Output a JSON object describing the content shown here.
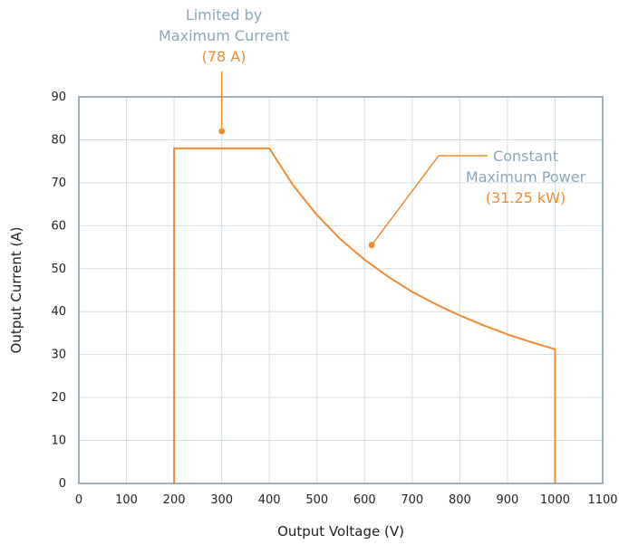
{
  "chart_data": {
    "type": "line",
    "xlabel": "Output Voltage (V)",
    "ylabel": "Output Current (A)",
    "xlim": [
      0,
      1100
    ],
    "ylim": [
      0,
      90
    ],
    "xticks": [
      0,
      100,
      200,
      300,
      400,
      500,
      600,
      700,
      800,
      900,
      1000,
      1100
    ],
    "yticks": [
      0,
      10,
      20,
      30,
      40,
      50,
      60,
      70,
      80,
      90
    ],
    "grid": true,
    "series": [
      {
        "color": "#f28a30",
        "x": [
          200,
          200,
          400,
          450,
          500,
          550,
          600,
          650,
          700,
          750,
          800,
          850,
          900,
          950,
          1000,
          1000
        ],
        "y": [
          0,
          78,
          78,
          69.4,
          62.5,
          56.8,
          52.1,
          48.1,
          44.6,
          41.7,
          39.1,
          36.8,
          34.7,
          32.9,
          31.25,
          0
        ]
      }
    ],
    "annotations": [
      {
        "lines": [
          "Limited by",
          "Maximum Current"
        ],
        "value": "(78 A)",
        "point": [
          300,
          82
        ]
      },
      {
        "lines": [
          "Constant",
          "Maximum Power"
        ],
        "value": "(31.25 kW)",
        "point": [
          615,
          55.5
        ]
      }
    ]
  },
  "colors": {
    "curve": "#f28a30",
    "annotation_text": "#8aa7b8",
    "axis": "#7e98a8",
    "grid": "#d3dde4"
  }
}
